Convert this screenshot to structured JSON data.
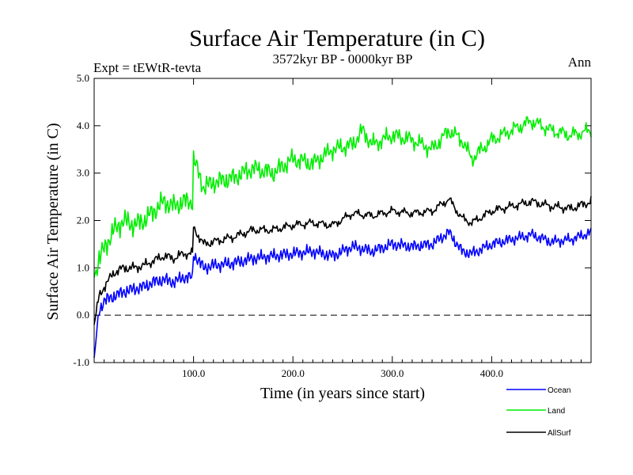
{
  "chart_data": {
    "type": "line",
    "title": "Surface Air Temperature (in C)",
    "subtitle": "3572kyr BP - 0000kyr BP",
    "left_label": "Expt = tEWtR-tevta",
    "right_label": "Ann",
    "xlabel": "Time (in years since start)",
    "ylabel": "Surface Air Temperature (in C)",
    "xlim": [
      0,
      500
    ],
    "ylim": [
      -1.0,
      5.0
    ],
    "xticks": [
      100,
      200,
      300,
      400
    ],
    "xtick_labels": [
      "100.0",
      "200.0",
      "300.0",
      "400.0"
    ],
    "yticks": [
      -1,
      0,
      1,
      2,
      3,
      4,
      5
    ],
    "ytick_labels": [
      "-1.0",
      "0.0",
      "1.0",
      "2.0",
      "3.0",
      "4.0",
      "5.0"
    ],
    "reference_line": 0.0,
    "series": [
      {
        "name": "Ocean",
        "color": "#0000ff",
        "x": [
          0,
          5,
          10,
          20,
          30,
          40,
          50,
          60,
          70,
          80,
          90,
          99,
          100,
          110,
          120,
          140,
          160,
          180,
          200,
          220,
          240,
          260,
          280,
          300,
          320,
          340,
          357,
          370,
          380,
          400,
          420,
          440,
          460,
          480,
          500
        ],
        "values": [
          -0.9,
          0.1,
          0.3,
          0.4,
          0.5,
          0.55,
          0.6,
          0.7,
          0.75,
          0.7,
          0.8,
          0.8,
          1.3,
          1.0,
          1.05,
          1.1,
          1.2,
          1.25,
          1.3,
          1.35,
          1.25,
          1.45,
          1.35,
          1.5,
          1.45,
          1.5,
          1.75,
          1.35,
          1.3,
          1.5,
          1.6,
          1.7,
          1.55,
          1.6,
          1.75
        ]
      },
      {
        "name": "Land",
        "color": "#00ee00",
        "x": [
          0,
          5,
          10,
          20,
          30,
          40,
          50,
          60,
          70,
          80,
          90,
          99,
          100,
          110,
          120,
          140,
          160,
          180,
          200,
          220,
          240,
          260,
          270,
          280,
          300,
          320,
          340,
          357,
          370,
          380,
          400,
          420,
          440,
          460,
          480,
          500
        ],
        "values": [
          0.8,
          1.2,
          1.4,
          1.8,
          2.0,
          1.9,
          2.0,
          2.2,
          2.4,
          2.3,
          2.4,
          2.4,
          3.3,
          2.7,
          2.8,
          2.9,
          3.1,
          3.0,
          3.3,
          3.2,
          3.5,
          3.6,
          3.9,
          3.6,
          3.8,
          3.7,
          3.5,
          3.9,
          3.7,
          3.3,
          3.7,
          3.9,
          4.1,
          3.9,
          3.8,
          3.9
        ]
      },
      {
        "name": "AllSurf",
        "color": "#000000",
        "x": [
          0,
          5,
          10,
          20,
          30,
          40,
          50,
          60,
          70,
          80,
          90,
          99,
          100,
          110,
          120,
          140,
          160,
          180,
          200,
          220,
          240,
          260,
          280,
          300,
          320,
          340,
          357,
          370,
          380,
          400,
          420,
          440,
          460,
          480,
          500
        ],
        "values": [
          -0.2,
          0.4,
          0.6,
          0.9,
          1.0,
          1.0,
          1.05,
          1.15,
          1.25,
          1.2,
          1.3,
          1.3,
          1.85,
          1.5,
          1.55,
          1.65,
          1.8,
          1.8,
          1.9,
          1.95,
          1.9,
          2.15,
          2.1,
          2.2,
          2.15,
          2.2,
          2.45,
          2.05,
          1.95,
          2.2,
          2.3,
          2.4,
          2.3,
          2.25,
          2.4
        ]
      }
    ],
    "legend_position": "bottom-right"
  }
}
